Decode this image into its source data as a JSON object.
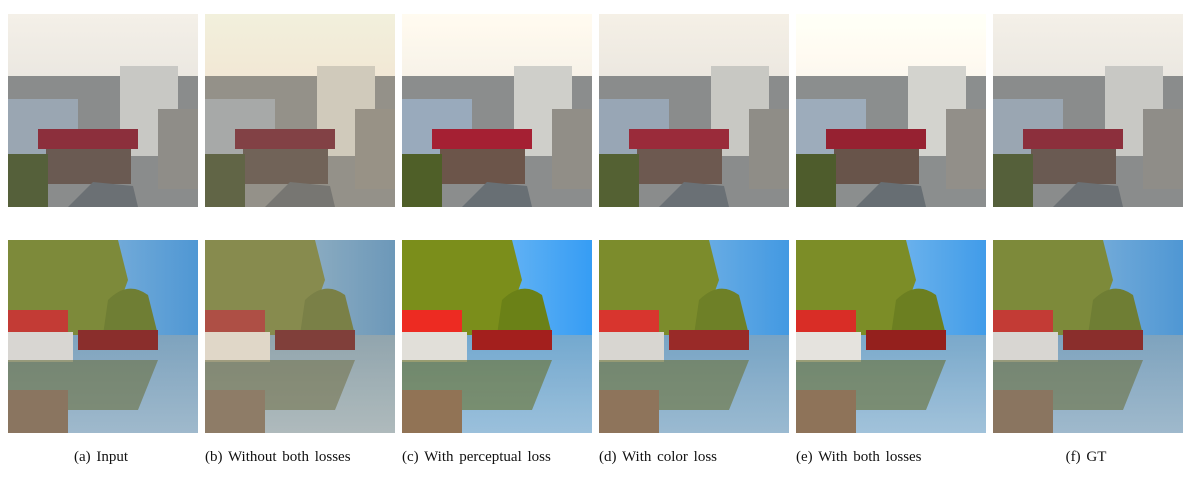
{
  "figure": {
    "captions": [
      "(a) Input",
      "(b) Without both losses",
      "(c) With perceptual loss",
      "(d) With color loss",
      "(e) With both losses",
      "(f) GT"
    ]
  }
}
